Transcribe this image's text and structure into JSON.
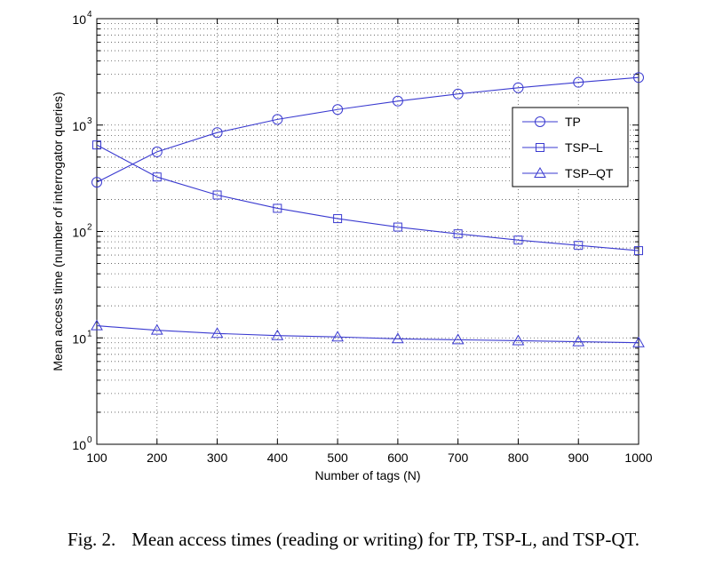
{
  "chart_data": {
    "type": "line",
    "xlabel": "Number of tags (N)",
    "ylabel": "Mean access time (number of interrogator queries)",
    "x": [
      100,
      200,
      300,
      400,
      500,
      600,
      700,
      800,
      900,
      1000
    ],
    "xlim": [
      100,
      1000
    ],
    "ylim": [
      1,
      10000
    ],
    "yscale": "log",
    "grid": true,
    "legend_position": "upper-right",
    "x_tick_labels": [
      "100",
      "200",
      "300",
      "400",
      "500",
      "600",
      "700",
      "800",
      "900",
      "1000"
    ],
    "y_tick_labels": [
      {
        "base": "10",
        "exp": "0"
      },
      {
        "base": "10",
        "exp": "1"
      },
      {
        "base": "10",
        "exp": "2"
      },
      {
        "base": "10",
        "exp": "3"
      },
      {
        "base": "10",
        "exp": "4"
      }
    ],
    "series": [
      {
        "name": "TP",
        "marker": "circle",
        "values": [
          290,
          560,
          850,
          1130,
          1400,
          1680,
          1960,
          2240,
          2520,
          2800
        ]
      },
      {
        "name": "TSP–L",
        "marker": "square",
        "values": [
          650,
          325,
          220,
          165,
          132,
          110,
          95,
          83,
          74,
          66
        ]
      },
      {
        "name": "TSP–QT",
        "marker": "triangle",
        "values": [
          13,
          11.8,
          11,
          10.5,
          10.2,
          9.8,
          9.6,
          9.4,
          9.2,
          9
        ]
      }
    ],
    "line_color": "#3a3ad0"
  },
  "caption": {
    "label": "Fig. 2.",
    "text": "Mean access times (reading or writing) for TP, TSP-L, and TSP-QT."
  }
}
